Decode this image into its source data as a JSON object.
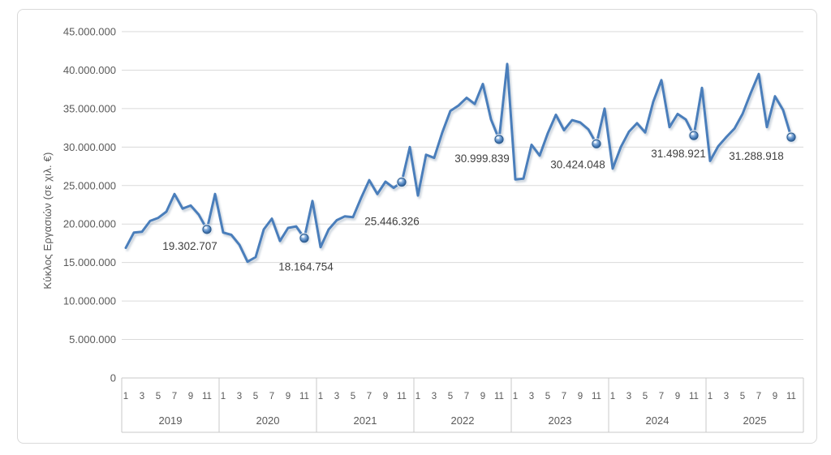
{
  "chart_data": {
    "type": "line",
    "title": "",
    "ylabel": "Κύκλος Εργασιών (σε χιλ. €)",
    "ylim": [
      0,
      45000000
    ],
    "ytick_step": 5000000,
    "grid": true,
    "legend": false,
    "x_axis": {
      "years": [
        "2019",
        "2020",
        "2021",
        "2022",
        "2023",
        "2024",
        "2025"
      ],
      "month_tick_labels": [
        "1",
        "3",
        "5",
        "7",
        "9",
        "11"
      ],
      "months_per_year": 12
    },
    "series": [
      {
        "color": "#4a7ebb",
        "values": [
          16900000,
          18900000,
          19000000,
          20400000,
          20800000,
          21600000,
          23900000,
          22000000,
          22400000,
          21200000,
          19302707,
          23900000,
          18900000,
          18600000,
          17300000,
          15100000,
          15700000,
          19300000,
          20700000,
          17800000,
          19500000,
          19700000,
          18164754,
          23000000,
          17000000,
          19300000,
          20500000,
          21000000,
          20900000,
          23400000,
          25700000,
          23900000,
          25500000,
          24700000,
          25446326,
          30000000,
          23700000,
          29000000,
          28600000,
          31900000,
          34700000,
          35400000,
          36400000,
          35600000,
          38200000,
          33600000,
          30999839,
          40800000,
          25800000,
          25900000,
          30300000,
          28900000,
          31800000,
          34200000,
          32200000,
          33500000,
          33200000,
          32300000,
          30424048,
          35000000,
          27200000,
          30000000,
          32000000,
          33100000,
          31900000,
          35900000,
          38700000,
          32600000,
          34300000,
          33600000,
          31498921,
          37700000,
          28200000,
          30100000,
          31300000,
          32400000,
          34300000,
          37000000,
          39500000,
          32600000,
          36600000,
          34800000,
          31288918
        ]
      }
    ],
    "annotations": [
      {
        "index": 10,
        "year": "2019",
        "month": "11",
        "label": "19.302.707",
        "value": 19302707
      },
      {
        "index": 22,
        "year": "2020",
        "month": "11",
        "label": "18.164.754",
        "value": 18164754
      },
      {
        "index": 34,
        "year": "2021",
        "month": "11",
        "label": "25.446.326",
        "value": 25446326
      },
      {
        "index": 46,
        "year": "2022",
        "month": "11",
        "label": "30.999.839",
        "value": 30999839
      },
      {
        "index": 58,
        "year": "2023",
        "month": "11",
        "label": "30.424.048",
        "value": 30424048
      },
      {
        "index": 70,
        "year": "2024",
        "month": "11",
        "label": "31.498.921",
        "value": 31498921
      },
      {
        "index": 82,
        "year": "2025",
        "month": "11",
        "label": "31.288.918",
        "value": 31288918
      }
    ],
    "colors": {
      "line": "#4a7ebb",
      "line_shadow": "#8fa1b5",
      "gridline": "#dadada",
      "axis_table_line": "#c9c9c9",
      "tick_text": "#595959",
      "data_label_text": "#3f3f3f",
      "frame_border": "#d9d9d9",
      "background": "#ffffff"
    }
  }
}
